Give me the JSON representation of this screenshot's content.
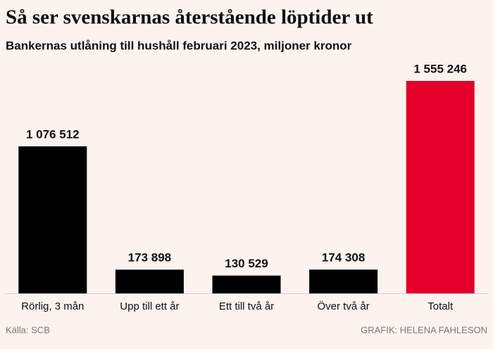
{
  "chart_data": {
    "type": "bar",
    "title": "Så ser svenskarnas återstående löptider ut",
    "subtitle": "Bankernas utlåning till hushåll februari 2023, miljoner kronor",
    "categories": [
      "Rörlig, 3 mån",
      "Upp till ett år",
      "Ett till två år",
      "Över två år",
      "Totalt"
    ],
    "values": [
      1076512,
      173898,
      130529,
      174308,
      1555246
    ],
    "value_labels": [
      "1 076 512",
      "173 898",
      "130 529",
      "174 308",
      "1 555 246"
    ],
    "colors": [
      "#000000",
      "#000000",
      "#000000",
      "#000000",
      "#e4002b"
    ],
    "source": "Källa: SCB",
    "credit": "GRAFIK: HELENA FAHLESON"
  }
}
